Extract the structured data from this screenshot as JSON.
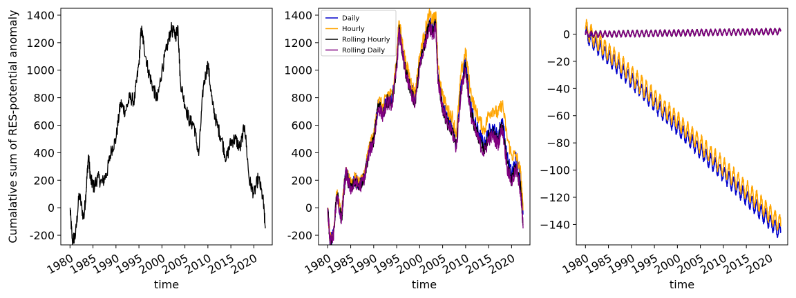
{
  "chart_data": [
    {
      "type": "line",
      "title": "",
      "xlabel": "time",
      "ylabel": "Cumalative sum of RES-potential anomaly",
      "xlim": [
        1978,
        2024
      ],
      "ylim": [
        -270,
        1450
      ],
      "x_ticks": [
        1980,
        1985,
        1990,
        1995,
        2000,
        2005,
        2010,
        2015,
        2020
      ],
      "y_ticks": [
        -200,
        0,
        200,
        400,
        600,
        800,
        1000,
        1200,
        1400
      ],
      "grid": false,
      "series": [
        {
          "color": "#000000",
          "x": [
            1980.0,
            1980.5,
            1981.2,
            1982.0,
            1983.0,
            1983.5,
            1984.0,
            1984.5,
            1985.2,
            1986.0,
            1987.0,
            1988.0,
            1989.0,
            1990.0,
            1991.0,
            1992.0,
            1993.0,
            1994.0,
            1995.0,
            1995.5,
            1996.0,
            1997.0,
            1998.0,
            1999.0,
            2000.0,
            2001.0,
            2002.0,
            2003.0,
            2003.5,
            2004.0,
            2005.0,
            2006.0,
            2007.0,
            2008.0,
            2009.0,
            2010.0,
            2011.0,
            2012.0,
            2013.0,
            2014.0,
            2015.0,
            2016.0,
            2017.0,
            2018.0,
            2019.0,
            2020.0,
            2021.0,
            2022.0,
            2022.5
          ],
          "y": [
            0,
            -240,
            -200,
            100,
            -80,
            120,
            380,
            200,
            150,
            220,
            180,
            250,
            420,
            500,
            760,
            700,
            800,
            780,
            1050,
            1300,
            1200,
            1000,
            880,
            780,
            1000,
            1150,
            1300,
            1250,
            1320,
            920,
            750,
            630,
            600,
            380,
            880,
            1050,
            750,
            600,
            500,
            350,
            480,
            500,
            430,
            600,
            200,
            100,
            220,
            60,
            -150
          ]
        }
      ]
    },
    {
      "type": "line",
      "title": "",
      "xlabel": "time",
      "ylabel": "",
      "xlim": [
        1978,
        2024
      ],
      "ylim": [
        -270,
        1450
      ],
      "x_ticks": [
        1980,
        1985,
        1990,
        1995,
        2000,
        2005,
        2010,
        2015,
        2020
      ],
      "y_ticks": [
        -200,
        0,
        200,
        400,
        600,
        800,
        1000,
        1200,
        1400
      ],
      "grid": false,
      "legend": "top-left",
      "series": [
        {
          "name": "Daily",
          "color": "#0000cc",
          "x": [
            1980.0,
            1980.5,
            1981.2,
            1982.0,
            1983.0,
            1983.5,
            1984.0,
            1984.5,
            1985.2,
            1986.0,
            1987.0,
            1988.0,
            1989.0,
            1990.0,
            1991.0,
            1992.0,
            1993.0,
            1994.0,
            1995.0,
            1995.5,
            1996.0,
            1997.0,
            1998.0,
            1999.0,
            2000.0,
            2001.0,
            2002.0,
            2003.0,
            2003.5,
            2004.0,
            2005.0,
            2006.0,
            2007.0,
            2008.0,
            2009.0,
            2010.0,
            2011.0,
            2012.0,
            2013.0,
            2014.0,
            2015.0,
            2016.0,
            2017.0,
            2018.0,
            2019.0,
            2020.0,
            2021.0,
            2022.0,
            2022.5
          ],
          "y": [
            0,
            -240,
            -200,
            100,
            -80,
            120,
            280,
            200,
            150,
            210,
            170,
            240,
            430,
            500,
            760,
            700,
            800,
            780,
            1050,
            1320,
            1200,
            1000,
            880,
            780,
            1050,
            1200,
            1350,
            1300,
            1380,
            950,
            760,
            640,
            600,
            470,
            900,
            1060,
            760,
            620,
            540,
            450,
            560,
            580,
            520,
            650,
            370,
            250,
            370,
            200,
            -50
          ]
        },
        {
          "name": "Hourly",
          "color": "#ffa500",
          "x": [
            1980.0,
            1980.5,
            1981.2,
            1982.0,
            1983.0,
            1983.5,
            1984.0,
            1984.5,
            1985.2,
            1986.0,
            1987.0,
            1988.0,
            1989.0,
            1990.0,
            1991.0,
            1992.0,
            1993.0,
            1994.0,
            1995.0,
            1995.5,
            1996.0,
            1997.0,
            1998.0,
            1999.0,
            2000.0,
            2001.0,
            2002.0,
            2003.0,
            2003.5,
            2004.0,
            2005.0,
            2006.0,
            2007.0,
            2008.0,
            2009.0,
            2010.0,
            2011.0,
            2012.0,
            2013.0,
            2014.0,
            2015.0,
            2016.0,
            2017.0,
            2018.0,
            2019.0,
            2020.0,
            2021.0,
            2022.0,
            2022.5
          ],
          "y": [
            0,
            -230,
            -190,
            110,
            -70,
            130,
            290,
            210,
            160,
            220,
            180,
            250,
            440,
            520,
            790,
            730,
            830,
            820,
            1090,
            1360,
            1250,
            1050,
            930,
            830,
            1100,
            1260,
            1400,
            1360,
            1420,
            1010,
            820,
            710,
            670,
            540,
            980,
            1140,
            860,
            720,
            640,
            560,
            680,
            720,
            680,
            760,
            520,
            380,
            380,
            250,
            -20
          ]
        },
        {
          "name": "Rolling Hourly",
          "color": "#000000",
          "x": [
            1980.0,
            1980.5,
            1981.2,
            1982.0,
            1983.0,
            1983.5,
            1984.0,
            1984.5,
            1985.2,
            1986.0,
            1987.0,
            1988.0,
            1989.0,
            1990.0,
            1991.0,
            1992.0,
            1993.0,
            1994.0,
            1995.0,
            1995.5,
            1996.0,
            1997.0,
            1998.0,
            1999.0,
            2000.0,
            2001.0,
            2002.0,
            2003.0,
            2003.5,
            2004.0,
            2005.0,
            2006.0,
            2007.0,
            2008.0,
            2009.0,
            2010.0,
            2011.0,
            2012.0,
            2013.0,
            2014.0,
            2015.0,
            2016.0,
            2017.0,
            2018.0,
            2019.0,
            2020.0,
            2021.0,
            2022.0,
            2022.5
          ],
          "y": [
            0,
            -245,
            -205,
            95,
            -85,
            115,
            270,
            190,
            140,
            200,
            160,
            230,
            410,
            490,
            740,
            680,
            780,
            760,
            1020,
            1290,
            1180,
            980,
            860,
            760,
            1030,
            1180,
            1320,
            1270,
            1350,
            930,
            730,
            610,
            570,
            440,
            860,
            1020,
            720,
            580,
            500,
            410,
            520,
            540,
            480,
            600,
            320,
            200,
            300,
            130,
            -120
          ]
        },
        {
          "name": "Rolling Daily",
          "color": "#800080",
          "x": [
            1980.0,
            1980.5,
            1981.2,
            1982.0,
            1983.0,
            1983.5,
            1984.0,
            1984.5,
            1985.2,
            1986.0,
            1987.0,
            1988.0,
            1989.0,
            1990.0,
            1991.0,
            1992.0,
            1993.0,
            1994.0,
            1995.0,
            1995.5,
            1996.0,
            1997.0,
            1998.0,
            1999.0,
            2000.0,
            2001.0,
            2002.0,
            2003.0,
            2003.5,
            2004.0,
            2005.0,
            2006.0,
            2007.0,
            2008.0,
            2009.0,
            2010.0,
            2011.0,
            2012.0,
            2013.0,
            2014.0,
            2015.0,
            2016.0,
            2017.0,
            2018.0,
            2019.0,
            2020.0,
            2021.0,
            2022.0,
            2022.5
          ],
          "y": [
            0,
            -250,
            -210,
            90,
            -90,
            110,
            260,
            180,
            130,
            190,
            150,
            220,
            400,
            480,
            730,
            670,
            770,
            750,
            1010,
            1280,
            1170,
            970,
            850,
            750,
            1020,
            1170,
            1310,
            1260,
            1340,
            920,
            720,
            600,
            560,
            430,
            850,
            1010,
            700,
            560,
            480,
            390,
            500,
            520,
            460,
            580,
            300,
            180,
            280,
            110,
            -150
          ]
        }
      ]
    },
    {
      "type": "line",
      "title": "",
      "xlabel": "time",
      "ylabel": "",
      "xlim": [
        1978,
        2024
      ],
      "ylim": [
        -155,
        19
      ],
      "x_ticks": [
        1980,
        1985,
        1990,
        1995,
        2000,
        2005,
        2010,
        2015,
        2020
      ],
      "y_ticks": [
        0,
        -20,
        -40,
        -60,
        -80,
        -100,
        -120,
        -140
      ],
      "y_tick_labels": [
        "0",
        "−20",
        "−40",
        "−60",
        "−80",
        "−100",
        "−120",
        "−140"
      ],
      "grid": false,
      "series": [
        {
          "color": "#0000cc",
          "trend": [
            [
              1980.0,
              0
            ],
            [
              2022.5,
              -146
            ]
          ],
          "seasonal_amplitude": 5,
          "seasonal_period_years": 1
        },
        {
          "color": "#ffa500",
          "trend": [
            [
              1980.0,
              4
            ],
            [
              2022.5,
              -140
            ]
          ],
          "seasonal_amplitude": 6,
          "seasonal_period_years": 1
        },
        {
          "color": "#000000",
          "trend": [
            [
              1980.0,
              0
            ],
            [
              1983.5,
              0
            ],
            [
              2022.5,
              2
            ]
          ],
          "seasonal_amplitude": 2,
          "seasonal_period_years": 1
        },
        {
          "color": "#800080",
          "trend": [
            [
              1980.0,
              0
            ],
            [
              1983.5,
              0
            ],
            [
              2022.5,
              2
            ]
          ],
          "seasonal_amplitude": 2,
          "seasonal_period_years": 1
        }
      ]
    }
  ]
}
